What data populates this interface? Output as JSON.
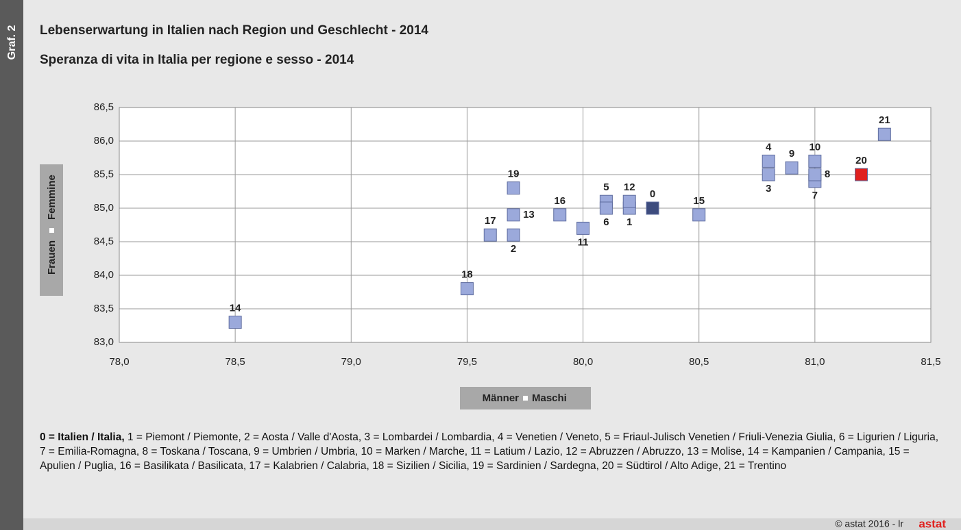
{
  "chart_data": {
    "type": "scatter",
    "side_label": "Graf. 2",
    "title": "Lebenserwartung in Italien nach Region und Geschlecht - 2014",
    "subtitle": "Speranza di vita in Italia per regione e sesso - 2014",
    "x_label": {
      "de": "Männer",
      "it": "Maschi"
    },
    "y_label": {
      "de": "Frauen",
      "it": "Femmine"
    },
    "point_labels": [
      "0",
      "1",
      "2",
      "3",
      "4",
      "5",
      "6",
      "7",
      "8",
      "9",
      "10",
      "11",
      "12",
      "13",
      "14",
      "15",
      "16",
      "17",
      "18",
      "19",
      "20",
      "21"
    ],
    "x": [
      80.3,
      80.2,
      79.7,
      80.8,
      80.8,
      80.1,
      80.1,
      81.0,
      81.0,
      80.9,
      81.0,
      80.0,
      80.2,
      79.7,
      78.5,
      80.5,
      79.9,
      79.6,
      79.5,
      79.7,
      81.2,
      81.3
    ],
    "values": [
      85.0,
      85.0,
      84.6,
      85.5,
      85.7,
      85.1,
      85.0,
      85.4,
      85.5,
      85.6,
      85.7,
      84.7,
      85.1,
      84.9,
      83.3,
      84.9,
      84.9,
      84.6,
      83.8,
      85.3,
      85.5,
      86.1
    ],
    "colors": [
      "#3d4c7e",
      "#9ba9db",
      "#9ba9db",
      "#9ba9db",
      "#9ba9db",
      "#9ba9db",
      "#9ba9db",
      "#9ba9db",
      "#9ba9db",
      "#9ba9db",
      "#9ba9db",
      "#9ba9db",
      "#9ba9db",
      "#9ba9db",
      "#9ba9db",
      "#9ba9db",
      "#9ba9db",
      "#9ba9db",
      "#9ba9db",
      "#9ba9db",
      "#e0201e",
      "#9ba9db"
    ],
    "xlim": [
      78.0,
      81.5
    ],
    "xticks": [
      {
        "value": 78.0,
        "label": "78,0"
      },
      {
        "value": 78.5,
        "label": "78,5"
      },
      {
        "value": 79.0,
        "label": "79,0"
      },
      {
        "value": 79.5,
        "label": "79,5"
      },
      {
        "value": 80.0,
        "label": "80,0"
      },
      {
        "value": 80.5,
        "label": "80,5"
      },
      {
        "value": 81.0,
        "label": "81,0"
      },
      {
        "value": 81.5,
        "label": "81,5"
      }
    ],
    "ylim": [
      83.0,
      86.5
    ],
    "yticks": [
      {
        "value": 83.0,
        "label": "83,0"
      },
      {
        "value": 83.5,
        "label": "83,5"
      },
      {
        "value": 84.0,
        "label": "84,0"
      },
      {
        "value": 84.5,
        "label": "84,5"
      },
      {
        "value": 85.0,
        "label": "85,0"
      },
      {
        "value": 85.5,
        "label": "85,5"
      },
      {
        "value": 86.0,
        "label": "86,0"
      },
      {
        "value": 86.5,
        "label": "86,5"
      }
    ],
    "grid": true,
    "footnote": {
      "bold": "0 = Italien / Italia,",
      "text": "1 = Piemont / Piemonte, 2 = Aosta / Valle d'Aosta, 3 = Lombardei / Lombardia, 4 = Venetien / Veneto, 5 = Friaul-Julisch Venetien / Friuli-Venezia Giulia, 6 = Ligurien / Liguria, 7 = Emilia-Romagna, 8 = Toskana / Toscana, 9 = Umbrien / Umbria, 10 = Marken / Marche, 11 = Latium / Lazio, 12 = Abruzzen / Abruzzo, 13 = Molise, 14 = Kampanien / Campania, 15 = Apulien / Puglia, 16 = Basilikata / Basilicata, 17 = Kalabrien / Calabria, 18 = Sizilien / Sicilia, 19 = Sardinien / Sardegna, 20 = Südtirol / Alto Adige, 21 = Trentino"
    },
    "copyright": "© astat 2016 - lr",
    "logo": "astat"
  }
}
